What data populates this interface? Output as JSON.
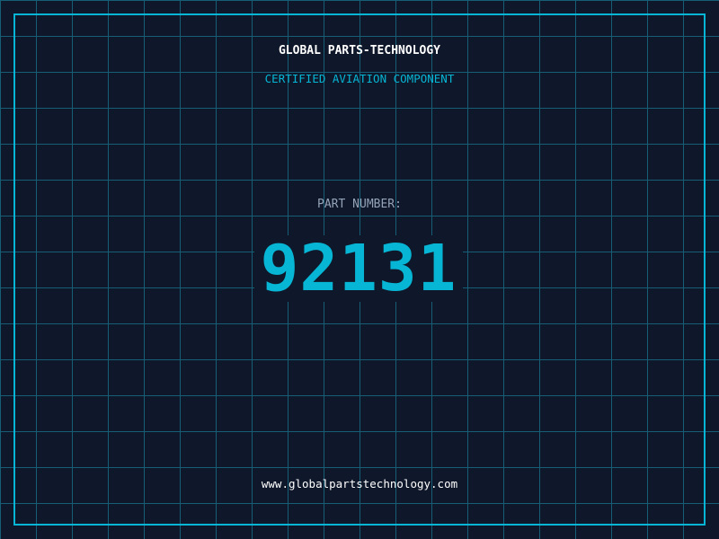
{
  "header": {
    "brand": "GLOBAL PARTS-TECHNOLOGY",
    "subtitle": "CERTIFIED AVIATION COMPONENT"
  },
  "part": {
    "label": "PART NUMBER:",
    "number": "92131"
  },
  "footer": {
    "url": "www.globalpartstechnology.com"
  },
  "colors": {
    "background": "#0f172a",
    "accent": "#06b6d4",
    "grid": "#155e75",
    "label": "#94a3b8"
  }
}
